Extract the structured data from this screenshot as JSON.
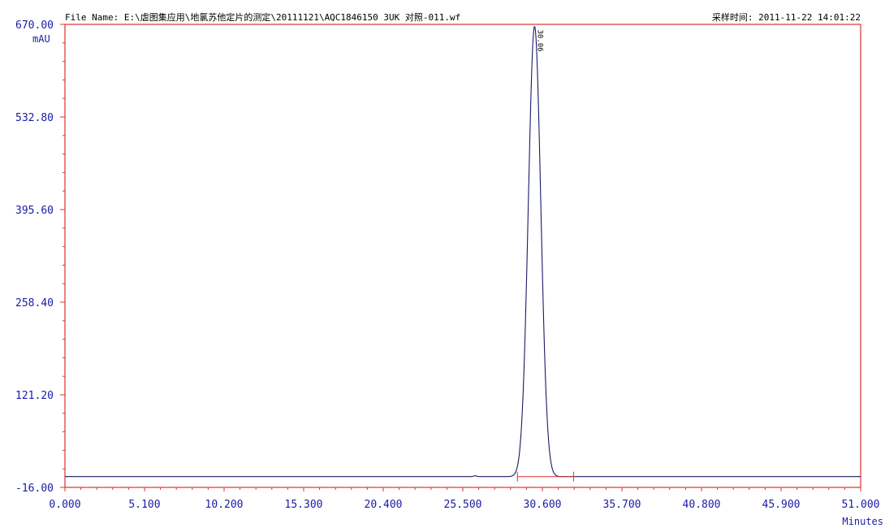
{
  "header": {
    "file_name": "File Name: E:\\虐图集应用\\地氯苏他定片的测定\\20111121\\AQC1846150 3UK 对照-011.wf",
    "acquisition_time": "采样时间: 2011-11-22 14:01:22"
  },
  "colors": {
    "frame": "#e03030",
    "tick_label": "#1a1aa6",
    "trace": "#1a1a66",
    "baseline": "#1a1a66",
    "integration_marker": "#e03030"
  },
  "chart_data": {
    "type": "line",
    "title": "",
    "xlabel": "Minutes",
    "ylabel": "mAU",
    "xlim": [
      0,
      51
    ],
    "ylim": [
      -16,
      670
    ],
    "x_ticks": [
      "0.000",
      "5.100",
      "10.200",
      "15.300",
      "20.400",
      "25.500",
      "30.600",
      "35.700",
      "40.800",
      "45.900",
      "51.000"
    ],
    "y_ticks": [
      "-16.00",
      "121.20",
      "258.40",
      "395.60",
      "532.80",
      "670.00"
    ],
    "grid": false,
    "peaks": [
      {
        "retention_time": 30.1,
        "height": 667,
        "width_sigma": 0.4,
        "label": "30.06"
      },
      {
        "retention_time": 26.3,
        "height": 1.2,
        "width_sigma": 0.1,
        "label": ""
      }
    ],
    "baseline_value": 0,
    "integration_start": 29.0,
    "integration_end": 32.6,
    "peak_label": "30.06"
  }
}
